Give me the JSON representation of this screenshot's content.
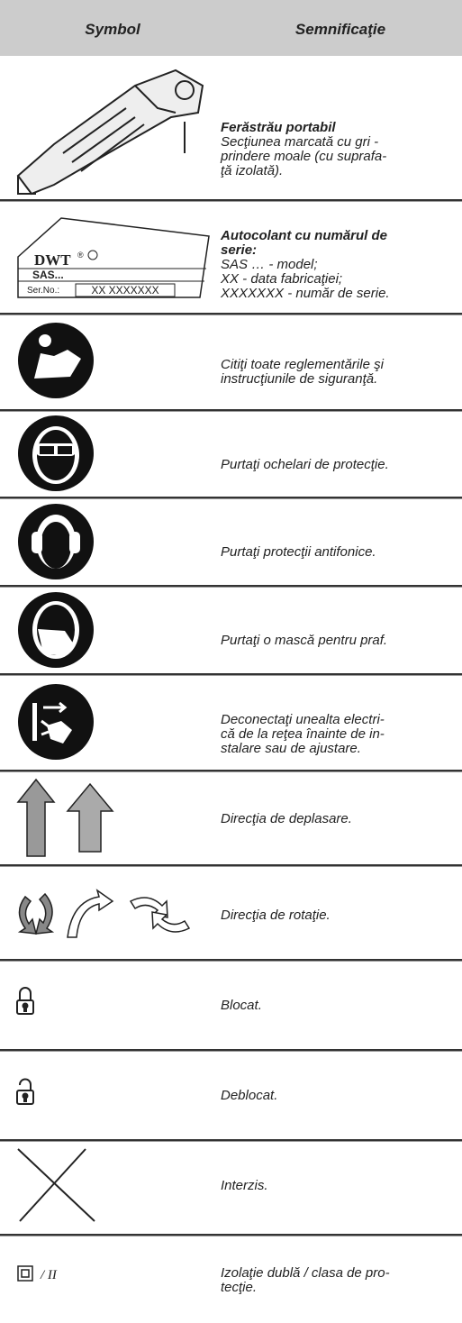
{
  "table": {
    "header": [
      "Symbol",
      "Semnificaţie"
    ],
    "rows": [
      {
        "title": [
          "Ferăstrău portabil"
        ],
        "lines": [
          "Secţiunea marcată cu gri -",
          "prindere moale (cu suprafa-",
          "ţă izolată)."
        ]
      },
      {
        "title": [
          "Autocolant cu numărul de",
          "serie:"
        ],
        "lines": [
          "SAS … - model;",
          "XX - data fabricaţiei;",
          "XXXXXXX - număr de serie."
        ],
        "label": {
          "brand": "DWT",
          "mark": "®",
          "model": "SAS...",
          "serial_label": "Ser.No.:",
          "serial": "XX XXXXXXX"
        }
      },
      {
        "lines": [
          "Citiţi toate reglementările şi",
          "instrucţiunile de siguranţă."
        ]
      },
      {
        "lines": [
          "Purtaţi ochelari de protecţie."
        ]
      },
      {
        "lines": [
          "Purtaţi protecţii antifonice."
        ]
      },
      {
        "lines": [
          "Purtaţi o mască pentru praf."
        ]
      },
      {
        "lines": [
          "Deconectaţi unealta electri-",
          "că de la reţea înainte de in-",
          "stalare sau de ajustare."
        ]
      },
      {
        "lines": [
          "Direcţia de deplasare."
        ]
      },
      {
        "lines": [
          "Direcţia de rotaţie."
        ]
      },
      {
        "lines": [
          "Blocat."
        ]
      },
      {
        "lines": [
          "Deblocat."
        ]
      },
      {
        "lines": [
          "Interzis."
        ]
      },
      {
        "lines": [
          "Izolaţie dublă / clasa de pro-",
          "tecţie."
        ],
        "symbol_text": "/ II"
      }
    ]
  }
}
